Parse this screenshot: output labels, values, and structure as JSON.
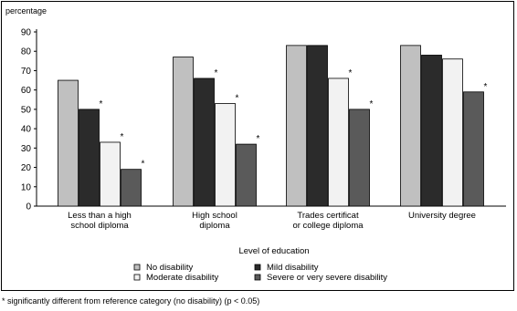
{
  "chart_data": {
    "type": "bar",
    "ylabel": "percentage",
    "xlabel": "Level of education",
    "ylim": [
      0,
      90
    ],
    "yticks": [
      0,
      10,
      20,
      30,
      40,
      50,
      60,
      70,
      80,
      90
    ],
    "categories": [
      [
        "Less than a high",
        "school diploma"
      ],
      [
        "High school",
        "diploma"
      ],
      [
        "Trades certificat",
        "or college diploma"
      ],
      [
        "University degree"
      ]
    ],
    "series": [
      {
        "name": "No disability",
        "color": "#c0c0c0",
        "values": [
          65,
          77,
          83,
          83
        ],
        "significant": [
          false,
          false,
          false,
          false
        ]
      },
      {
        "name": "Mild disability",
        "color": "#2b2b2b",
        "values": [
          50,
          66,
          83,
          78
        ],
        "significant": [
          true,
          true,
          false,
          false
        ]
      },
      {
        "name": "Moderate disability",
        "color": "#f2f2f2",
        "values": [
          33,
          53,
          66,
          76
        ],
        "significant": [
          true,
          true,
          true,
          false
        ]
      },
      {
        "name": "Severe or very severe disability",
        "color": "#5a5a5a",
        "values": [
          19,
          32,
          50,
          59
        ],
        "significant": [
          true,
          true,
          true,
          true
        ]
      }
    ],
    "significance_marker": "*",
    "legend_position": "bottom",
    "grid": false
  },
  "footnote": "* significantly different from reference category (no disability) (p < 0.05)"
}
